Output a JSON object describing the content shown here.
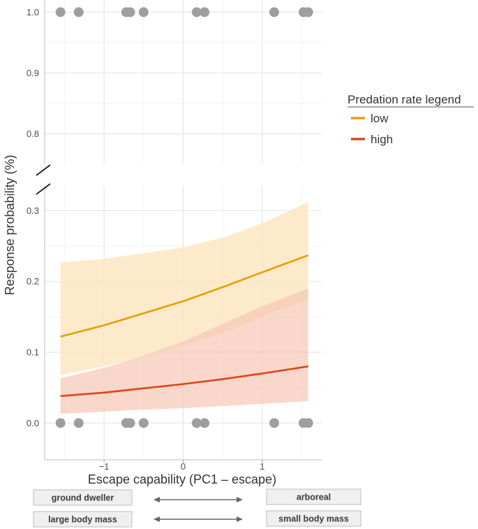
{
  "chart_data": {
    "type": "line",
    "xlabel": "Escape capability (PC1 – escape)",
    "ylabel": "Response probability (%)",
    "xlim": [
      -1.75,
      1.75
    ],
    "x_ticks": [
      -1,
      0,
      1
    ],
    "x_tick_labels": [
      "−1",
      "0",
      "1"
    ],
    "y_upper_range": [
      0.75,
      1.02
    ],
    "y_upper_ticks": [
      0.8,
      0.9,
      1.0
    ],
    "y_upper_tick_labels": [
      "0.8",
      "0.9",
      "1.0"
    ],
    "y_lower_range": [
      -0.052,
      0.335
    ],
    "y_lower_ticks": [
      0.0,
      0.1,
      0.2,
      0.3
    ],
    "y_lower_tick_labels": [
      "0.0",
      "0.1",
      "0.2",
      "0.3"
    ],
    "axis_break": true,
    "grid": true,
    "legend": {
      "title": "Predation rate legend",
      "position": "right",
      "entries": [
        {
          "label": "low",
          "color": "#E69F00"
        },
        {
          "label": "high",
          "color": "#E0441A"
        }
      ]
    },
    "series": [
      {
        "name": "low",
        "color": "#E69F00",
        "band_color": "#FBE6C2",
        "x": [
          -1.55,
          -1.0,
          -0.5,
          0.0,
          0.5,
          1.0,
          1.58
        ],
        "y": [
          0.122,
          0.138,
          0.155,
          0.172,
          0.192,
          0.213,
          0.237
        ],
        "lower": [
          0.068,
          0.08,
          0.094,
          0.11,
          0.127,
          0.15,
          0.175
        ],
        "upper": [
          0.227,
          0.232,
          0.24,
          0.248,
          0.262,
          0.282,
          0.312
        ]
      },
      {
        "name": "high",
        "color": "#E0441A",
        "band_color": "#F7C6B4",
        "x": [
          -1.55,
          -1.0,
          -0.5,
          0.0,
          0.5,
          1.0,
          1.58
        ],
        "y": [
          0.038,
          0.043,
          0.049,
          0.055,
          0.062,
          0.07,
          0.08
        ],
        "lower": [
          0.013,
          0.016,
          0.019,
          0.021,
          0.024,
          0.027,
          0.031
        ],
        "upper": [
          0.063,
          0.078,
          0.095,
          0.115,
          0.14,
          0.165,
          0.19
        ]
      }
    ],
    "observations": {
      "color": "#9E9E9E",
      "top_y": 1.0,
      "bottom_y": 0.0,
      "x": [
        -1.55,
        -1.32,
        -0.72,
        -0.67,
        -0.5,
        0.17,
        0.27,
        1.15,
        1.52,
        1.58
      ]
    }
  },
  "annotations": {
    "left_labels": [
      "ground dweller",
      "large body mass"
    ],
    "right_labels": [
      "arboreal",
      "small body mass"
    ],
    "box_fill": "#EFEFEF",
    "arrow_color": "#666666"
  }
}
